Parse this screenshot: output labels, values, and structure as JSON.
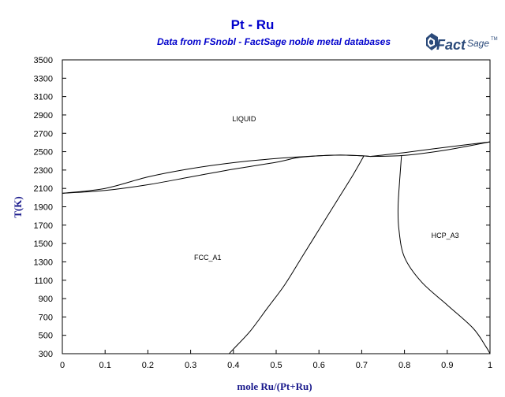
{
  "chart_data": {
    "type": "line",
    "title": "Pt - Ru",
    "subtitle": "Data from FSnobl - FactSage noble metal databases",
    "xlabel": "mole Ru/(Pt+Ru)",
    "ylabel": "T(K)",
    "xlim": [
      0,
      1
    ],
    "ylim": [
      300,
      3500
    ],
    "x_ticks": [
      0,
      0.1,
      0.2,
      0.3,
      0.4,
      0.5,
      0.6,
      0.7,
      0.8,
      0.9,
      1
    ],
    "x_tick_labels": [
      "0",
      "0.1",
      "0.2",
      "0.3",
      "0.4",
      "0.5",
      "0.6",
      "0.7",
      "0.8",
      "0.9",
      "1"
    ],
    "y_ticks": [
      300,
      500,
      700,
      900,
      1100,
      1300,
      1500,
      1700,
      1900,
      2100,
      2300,
      2500,
      2700,
      2900,
      3100,
      3300,
      3500
    ],
    "y_tick_labels": [
      "300",
      "500",
      "700",
      "900",
      "1100",
      "1300",
      "1500",
      "1700",
      "1900",
      "2100",
      "2300",
      "2500",
      "2700",
      "2900",
      "3100",
      "3300",
      "3500"
    ],
    "grid": false,
    "series": [
      {
        "points": [
          [
            0,
            2047
          ],
          [
            0.1,
            2100
          ],
          [
            0.2,
            2225
          ],
          [
            0.3,
            2315
          ],
          [
            0.4,
            2380
          ],
          [
            0.5,
            2425
          ],
          [
            0.6,
            2455
          ],
          [
            0.65,
            2463
          ],
          [
            0.7,
            2455
          ],
          [
            0.72,
            2448
          ]
        ]
      },
      {
        "points": [
          [
            0,
            2047
          ],
          [
            0.1,
            2078
          ],
          [
            0.2,
            2140
          ],
          [
            0.3,
            2225
          ],
          [
            0.4,
            2310
          ],
          [
            0.5,
            2385
          ],
          [
            0.55,
            2435
          ],
          [
            0.6,
            2455
          ],
          [
            0.65,
            2463
          ],
          [
            0.7,
            2455
          ],
          [
            0.72,
            2448
          ]
        ]
      },
      {
        "points": [
          [
            0.72,
            2448
          ],
          [
            0.8,
            2490
          ],
          [
            0.9,
            2550
          ],
          [
            1,
            2607
          ]
        ]
      },
      {
        "points": [
          [
            0.72,
            2448
          ],
          [
            0.8,
            2460
          ],
          [
            0.9,
            2520
          ],
          [
            1,
            2607
          ]
        ]
      },
      {
        "points": [
          [
            0.705,
            2453
          ],
          [
            0.68,
            2250
          ],
          [
            0.64,
            1950
          ],
          [
            0.6,
            1650
          ],
          [
            0.56,
            1350
          ],
          [
            0.52,
            1050
          ],
          [
            0.48,
            800
          ],
          [
            0.44,
            550
          ],
          [
            0.4,
            350
          ],
          [
            0.39,
            300
          ]
        ]
      },
      {
        "points": [
          [
            0.793,
            2455
          ],
          [
            0.789,
            2200
          ],
          [
            0.785,
            1900
          ],
          [
            0.787,
            1650
          ],
          [
            0.8,
            1350
          ],
          [
            0.84,
            1080
          ],
          [
            0.9,
            830
          ],
          [
            0.96,
            580
          ],
          [
            0.99,
            380
          ],
          [
            1,
            300
          ]
        ]
      }
    ],
    "annotations": [
      {
        "text": "LIQUID",
        "x": 0.425,
        "y": 2830
      },
      {
        "text": "FCC_A1",
        "x": 0.34,
        "y": 1320
      },
      {
        "text": "HCP_A3",
        "x": 0.895,
        "y": 1560
      }
    ]
  },
  "logo": {
    "text_main": "Fact",
    "text_secondary": "Sage",
    "mark": "TM"
  }
}
